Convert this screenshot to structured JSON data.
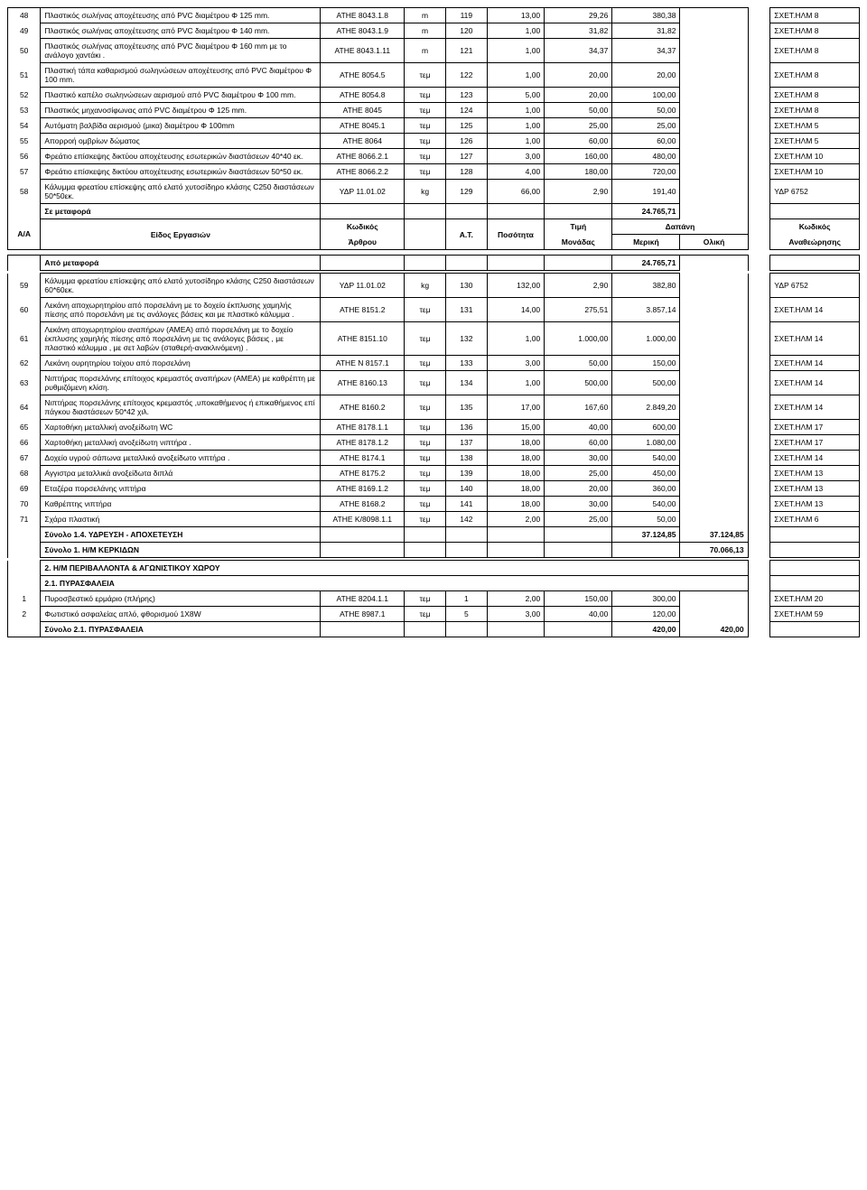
{
  "rows1": [
    {
      "aa": "48",
      "desc": "Πλαστικός σωλήνας αποχέτευσης από PVC διαμέτρου Φ 125 mm.",
      "kod": "ΑΤΗΕ 8043.1.8",
      "unit": "m",
      "at": "119",
      "qty": "13,00",
      "timi": "29,26",
      "mer": "380,38",
      "ana": "ΣΧΕΤ.ΗΛΜ 8"
    },
    {
      "aa": "49",
      "desc": "Πλαστικός σωλήνας αποχέτευσης από PVC διαμέτρου Φ 140 mm.",
      "kod": "ΑΤΗΕ 8043.1.9",
      "unit": "m",
      "at": "120",
      "qty": "1,00",
      "timi": "31,82",
      "mer": "31,82",
      "ana": "ΣΧΕΤ.ΗΛΜ 8"
    },
    {
      "aa": "50",
      "desc": "Πλαστικός σωλήνας αποχέτευσης από PVC διαμέτρου Φ 160 mm με το ανάλογο χαντάκι .",
      "kod": "ΑΤΗΕ 8043.1.11",
      "unit": "m",
      "at": "121",
      "qty": "1,00",
      "timi": "34,37",
      "mer": "34,37",
      "ana": "ΣΧΕΤ.ΗΛΜ 8"
    },
    {
      "aa": "51",
      "desc": "Πλαστική τάπα καθαρισμού σωληνώσεων αποχέτευσης από PVC  διαμέτρου Φ 100 mm.",
      "kod": "ΑΤΗΕ 8054.5",
      "unit": "τεμ",
      "at": "122",
      "qty": "1,00",
      "timi": "20,00",
      "mer": "20,00",
      "ana": "ΣΧΕΤ.ΗΛΜ 8"
    },
    {
      "aa": "52",
      "desc": "Πλαστικό καπέλο σωληνώσεων αερισμού από PVC  διαμέτρου Φ 100 mm.",
      "kod": "ΑΤΗΕ 8054.8",
      "unit": "τεμ",
      "at": "123",
      "qty": "5,00",
      "timi": "20,00",
      "mer": "100,00",
      "ana": "ΣΧΕΤ.ΗΛΜ 8"
    },
    {
      "aa": "53",
      "desc": "Πλαστικός μηχανοσίφωνας από PVC διαμέτρου Φ 125 mm.",
      "kod": "ΑΤΗΕ 8045",
      "unit": "τεμ",
      "at": "124",
      "qty": "1,00",
      "timi": "50,00",
      "mer": "50,00",
      "ana": "ΣΧΕΤ.ΗΛΜ 8"
    },
    {
      "aa": "54",
      "desc": "Αυτόματη βαλβίδα αερισμού (μικα) διαμέτρου Φ 100mm",
      "kod": "ΑΤΗΕ 8045.1",
      "unit": "τεμ",
      "at": "125",
      "qty": "1,00",
      "timi": "25,00",
      "mer": "25,00",
      "ana": "ΣΧΕΤ.ΗΛΜ 5"
    },
    {
      "aa": "55",
      "desc": "Απορροή ομβρίων δώματος",
      "kod": "ΑΤΗΕ 8064",
      "unit": "τεμ",
      "at": "126",
      "qty": "1,00",
      "timi": "60,00",
      "mer": "60,00",
      "ana": "ΣΧΕΤ.ΗΛΜ 5"
    },
    {
      "aa": "56",
      "desc": "Φρεάτιο επίσκεψης δικτύου αποχέτευσης εσωτερικών διαστάσεων 40*40 εκ.",
      "kod": "ΑΤΗΕ 8066.2.1",
      "unit": "τεμ",
      "at": "127",
      "qty": "3,00",
      "timi": "160,00",
      "mer": "480,00",
      "ana": "ΣΧΕΤ.ΗΛΜ 10"
    },
    {
      "aa": "57",
      "desc": "Φρεάτιο επίσκεψης δικτύου αποχέτευσης εσωτερικών διαστάσεων 50*50 εκ.",
      "kod": "ΑΤΗΕ 8066.2.2",
      "unit": "τεμ",
      "at": "128",
      "qty": "4,00",
      "timi": "180,00",
      "mer": "720,00",
      "ana": "ΣΧΕΤ.ΗΛΜ 10"
    },
    {
      "aa": "58",
      "desc": "Κάλυμμα φρεατίου επίσκεψης από ελατό χυτοσίδηρο κλάσης C250 διαστάσεων 50*50εκ.",
      "kod": "ΥΔΡ 11.01.02",
      "unit": "kg",
      "at": "129",
      "qty": "66,00",
      "timi": "2,90",
      "mer": "191,40",
      "ana": "ΥΔΡ 6752"
    }
  ],
  "seMetafora": {
    "label": "Σε μεταφορά",
    "val": "24.765,71"
  },
  "headers": {
    "aa": "Α/Α",
    "eidos": "Είδος Εργασιών",
    "kodikos": "Κωδικός",
    "arthrou": "Άρθρου",
    "at": "Α.Τ.",
    "posotita": "Ποσότητα",
    "timi": "Τιμή",
    "monadas": "Μονάδας",
    "dapani": "Δαπάνη",
    "meriki": "Μερική",
    "oliki": "Ολική",
    "kodikos2": "Κωδικός",
    "ana": "Αναθεώρησης"
  },
  "apoMetafora": {
    "label": "Από μεταφορά",
    "val": "24.765,71"
  },
  "rows2": [
    {
      "aa": "59",
      "desc": "Κάλυμμα φρεατίου επίσκεψης από ελατό χυτοσίδηρο κλάσης C250 διαστάσεων 60*60εκ.",
      "kod": "ΥΔΡ 11.01.02",
      "unit": "kg",
      "at": "130",
      "qty": "132,00",
      "timi": "2,90",
      "mer": "382,80",
      "ana": "ΥΔΡ 6752"
    },
    {
      "aa": "60",
      "desc": "Λεκάνη αποχωρητηρίου από πορσελάνη  με το δοχείο έκπλυσης χαμηλής πίεσης από πορσελάνη με τις ανάλογες βάσεις και με πλαστικό κάλυμμα .",
      "kod": "ΑΤΗΕ 8151.2",
      "unit": "τεμ",
      "at": "131",
      "qty": "14,00",
      "timi": "275,51",
      "mer": "3.857,14",
      "ana": "ΣΧΕΤ.ΗΛΜ 14"
    },
    {
      "aa": "61",
      "desc": "Λεκάνη αποχωρητηρίου αναπήρων (ΑΜΕΑ) από πορσελάνη  με το δοχείο έκπλυσης χαμηλής πίεσης από πορσελάνη με τις ανάλογες βάσεις , με πλαστικό κάλυμμα , με σετ λαβών (σταθερή-ανακλινόμενη) .",
      "kod": "ΑΤΗΕ 8151.10",
      "unit": "τεμ",
      "at": "132",
      "qty": "1,00",
      "timi": "1.000,00",
      "mer": "1.000,00",
      "ana": "ΣΧΕΤ.ΗΛΜ 14"
    },
    {
      "aa": "62",
      "desc": "Λεκάνη ουρητηρίου τοίχου από πορσελάνη",
      "kod": "ΑΤΗΕ Ν 8157.1",
      "unit": "τεμ",
      "at": "133",
      "qty": "3,00",
      "timi": "50,00",
      "mer": "150,00",
      "ana": "ΣΧΕΤ.ΗΛΜ 14"
    },
    {
      "aa": "63",
      "desc": "Νιπτήρας πορσελάνης επίτοιχος κρεμαστός αναπήρων (ΑΜΕΑ) με καθρέπτη με ρυθμιζόμενη κλίση.",
      "kod": "ΑΤΗΕ 8160.13",
      "unit": "τεμ",
      "at": "134",
      "qty": "1,00",
      "timi": "500,00",
      "mer": "500,00",
      "ana": "ΣΧΕΤ.ΗΛΜ 14"
    },
    {
      "aa": "64",
      "desc": "Νιπτήρας πορσελάνης επίτοιχος κρεμαστός ,υποκαθήμενος ή επικαθήμενος επί πάγκου διαστάσεων 50*42 χιλ.",
      "kod": "ΑΤΗΕ 8160.2",
      "unit": "τεμ",
      "at": "135",
      "qty": "17,00",
      "timi": "167,60",
      "mer": "2.849,20",
      "ana": "ΣΧΕΤ.ΗΛΜ 14"
    },
    {
      "aa": "65",
      "desc": "Χαρτοθήκη μεταλλική ανοξείδωτη WC",
      "kod": "ΑΤΗΕ 8178.1.1",
      "unit": "τεμ",
      "at": "136",
      "qty": "15,00",
      "timi": "40,00",
      "mer": "600,00",
      "ana": "ΣΧΕΤ.ΗΛΜ 17"
    },
    {
      "aa": "66",
      "desc": "Χαρτοθήκη μεταλλική ανοξείδωτη νιπτήρα .",
      "kod": "ΑΤΗΕ 8178.1.2",
      "unit": "τεμ",
      "at": "137",
      "qty": "18,00",
      "timi": "60,00",
      "mer": "1.080,00",
      "ana": "ΣΧΕΤ.ΗΛΜ 17"
    },
    {
      "aa": "67",
      "desc": "Δοχείο υγρού σάπωνα μεταλλικό ανοξείδωτο νιπτήρα .",
      "kod": "ΑΤΗΕ 8174.1",
      "unit": "τεμ",
      "at": "138",
      "qty": "18,00",
      "timi": "30,00",
      "mer": "540,00",
      "ana": "ΣΧΕΤ.ΗΛΜ 14"
    },
    {
      "aa": "68",
      "desc": "Αγγιστρα μεταλλικά ανοξείδωτα διπλά",
      "kod": "ΑΤΗΕ 8175.2",
      "unit": "τεμ",
      "at": "139",
      "qty": "18,00",
      "timi": "25,00",
      "mer": "450,00",
      "ana": "ΣΧΕΤ.ΗΛΜ 13"
    },
    {
      "aa": "69",
      "desc": "Εταζέρα πορσελάνης νιπτήρα",
      "kod": "ΑΤΗΕ 8169.1.2",
      "unit": "τεμ",
      "at": "140",
      "qty": "18,00",
      "timi": "20,00",
      "mer": "360,00",
      "ana": "ΣΧΕΤ.ΗΛΜ 13"
    },
    {
      "aa": "70",
      "desc": "Καθρέπτης νιπτήρα",
      "kod": "ΑΤΗΕ 8168.2",
      "unit": "τεμ",
      "at": "141",
      "qty": "18,00",
      "timi": "30,00",
      "mer": "540,00",
      "ana": "ΣΧΕΤ.ΗΛΜ 13"
    },
    {
      "aa": "71",
      "desc": "Σχάρα πλαστική",
      "kod": "ΑΤΗΕ Κ/8098.1.1",
      "unit": "τεμ",
      "at": "142",
      "qty": "2,00",
      "timi": "25,00",
      "mer": "50,00",
      "ana": "ΣΧΕΤ.ΗΛΜ 6"
    }
  ],
  "sum14": {
    "label": "Σύνολο 1.4. ΥΔΡΕΥΣΗ - ΑΠΟΧΕΤΕΥΣΗ",
    "mer": "37.124,85",
    "ol": "37.124,85"
  },
  "sum1": {
    "label": "Σύνολο 1. Η/Μ ΚΕΡΚΙΔΩΝ",
    "ol": "70.066,13"
  },
  "sec2": "2. Η/Μ ΠΕΡΙΒΑΛΛΟΝΤΑ & ΑΓΩΝΙΣΤΙΚΟΥ ΧΩΡΟΥ",
  "sec21": "2.1. ΠΥΡΑΣΦΑΛΕΙΑ",
  "rows3": [
    {
      "aa": "1",
      "desc": "Πυροσβεστικό ερμάριο (πλήρης)",
      "kod": "ΑΤΗΕ 8204.1.1",
      "unit": "τεμ",
      "at": "1",
      "qty": "2,00",
      "timi": "150,00",
      "mer": "300,00",
      "ana": "ΣΧΕΤ.ΗΛΜ 20"
    },
    {
      "aa": "2",
      "desc": "Φωτιστικό ασφαλείας απλό, φθορισμού 1Χ8W",
      "kod": "ΑΤΗΕ 8987.1",
      "unit": "τεμ",
      "at": "5",
      "qty": "3,00",
      "timi": "40,00",
      "mer": "120,00",
      "ana": "ΣΧΕΤ.ΗΛΜ 59"
    }
  ],
  "sum21": {
    "label": "Σύνολο 2.1. ΠΥΡΑΣΦΑΛΕΙΑ",
    "mer": "420,00",
    "ol": "420,00"
  }
}
